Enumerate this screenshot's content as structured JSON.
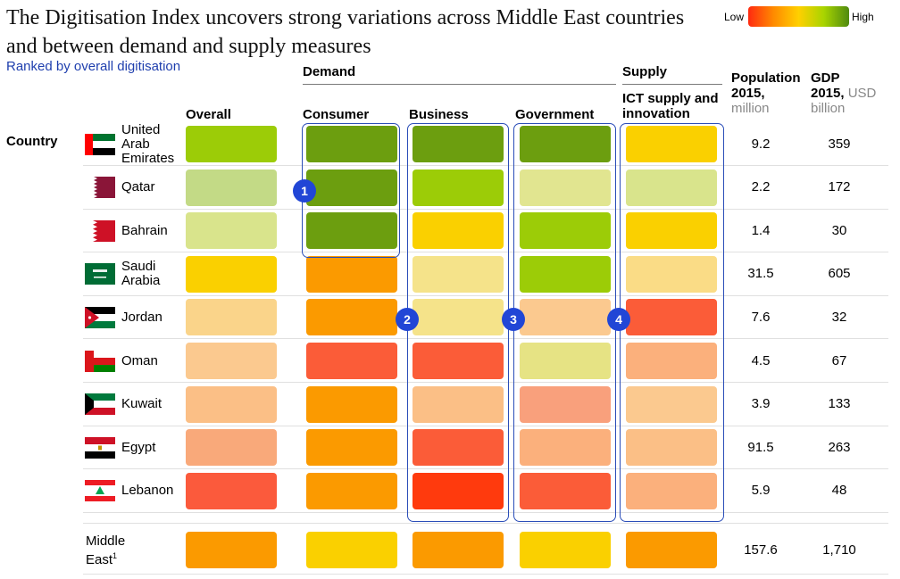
{
  "title": "The Digitisation Index uncovers strong variations across Middle East countries and between demand and supply measures",
  "subtitle": "Ranked by overall digitisation",
  "legend": {
    "low": "Low",
    "high": "High"
  },
  "groups": {
    "demand": "Demand",
    "supply": "Supply"
  },
  "columns": {
    "country": "Country",
    "overall": "Overall",
    "consumer": "Consumer",
    "business": "Business",
    "government": "Government",
    "ict": "ICT supply and innovation",
    "population": "Population",
    "population_year": "2015,",
    "population_unit": "million",
    "gdp": "GDP",
    "gdp_year": "2015,",
    "gdp_unit_a": "USD",
    "gdp_unit_b": "billion"
  },
  "colors": {
    "c1": "#5b9a10",
    "c2": "#6c9e0f",
    "c3": "#9ccc07",
    "c4": "#c3da86",
    "c5": "#d9e48c",
    "c6": "#e6e384",
    "c7": "#fad000",
    "c8": "#f5e38a",
    "c9": "#fad48a",
    "c10": "#fbc98f",
    "c11": "#fbbf86",
    "c12": "#fbb07c",
    "c13": "#f9a06e",
    "c14": "#fb9a00",
    "c15": "#fb8c13",
    "c16": "#fb5c38",
    "c17": "#ff3a0d",
    "c18": "#fb5a3c"
  },
  "chart_data": {
    "type": "heatmap",
    "title": "The Digitisation Index uncovers strong variations across Middle East countries and between demand and supply measures",
    "scale": [
      "Low",
      "High"
    ],
    "metrics": [
      "Overall",
      "Consumer",
      "Business",
      "Government",
      "ICT supply and innovation"
    ],
    "rows": [
      {
        "country": "United Arab Emirates",
        "name_lines": [
          "United",
          "Arab",
          "Emirates"
        ],
        "flag": "uae-flag",
        "colors": [
          "#9ccc07",
          "#6c9e0f",
          "#6c9e0f",
          "#6c9e0f",
          "#fad000"
        ],
        "population": "9.2",
        "gdp": "359"
      },
      {
        "country": "Qatar",
        "name_lines": [
          "Qatar"
        ],
        "flag": "qatar-flag",
        "colors": [
          "#c3da86",
          "#6c9e0f",
          "#9ccc07",
          "#e1e590",
          "#d9e48c"
        ],
        "population": "2.2",
        "gdp": "172"
      },
      {
        "country": "Bahrain",
        "name_lines": [
          "Bahrain"
        ],
        "flag": "bahrain-flag",
        "colors": [
          "#d9e48c",
          "#6c9e0f",
          "#fad000",
          "#9ccc07",
          "#fad000"
        ],
        "population": "1.4",
        "gdp": "30"
      },
      {
        "country": "Saudi Arabia",
        "name_lines": [
          "Saudi",
          "Arabia"
        ],
        "flag": "saudi-flag",
        "colors": [
          "#fad000",
          "#fb9a00",
          "#f5e38a",
          "#9ccc07",
          "#fadc86"
        ],
        "population": "31.5",
        "gdp": "605"
      },
      {
        "country": "Jordan",
        "name_lines": [
          "Jordan"
        ],
        "flag": "jordan-flag",
        "colors": [
          "#fad48a",
          "#fb9a00",
          "#f5e38a",
          "#fbc98f",
          "#fb5c38"
        ],
        "population": "7.6",
        "gdp": "32"
      },
      {
        "country": "Oman",
        "name_lines": [
          "Oman"
        ],
        "flag": "oman-flag",
        "colors": [
          "#fbc98f",
          "#fb5c38",
          "#fb5c38",
          "#e6e384",
          "#fbb07c"
        ],
        "population": "4.5",
        "gdp": "67"
      },
      {
        "country": "Kuwait",
        "name_lines": [
          "Kuwait"
        ],
        "flag": "kuwait-flag",
        "colors": [
          "#fbbf86",
          "#fb9a00",
          "#fbbf86",
          "#f9a07c",
          "#fbc98f"
        ],
        "population": "3.9",
        "gdp": "133"
      },
      {
        "country": "Egypt",
        "name_lines": [
          "Egypt"
        ],
        "flag": "egypt-flag",
        "colors": [
          "#f9a97a",
          "#fb9a00",
          "#fb5c38",
          "#fbb07c",
          "#fbbf86"
        ],
        "population": "91.5",
        "gdp": "263"
      },
      {
        "country": "Lebanon",
        "name_lines": [
          "Lebanon"
        ],
        "flag": "lebanon-flag",
        "colors": [
          "#fb5a3c",
          "#fb9a00",
          "#ff3a0d",
          "#fb5c38",
          "#fbb07c"
        ],
        "population": "5.9",
        "gdp": "48"
      }
    ],
    "total": {
      "country": "Middle East",
      "label": "Middle",
      "label2": "East",
      "footnote": "1",
      "colors": [
        "#fb9a00",
        "#fad000",
        "#fb9a00",
        "#fad000",
        "#fb9a00"
      ],
      "population": "157.6",
      "gdp": "1,710"
    },
    "callouts": [
      "1",
      "2",
      "3",
      "4"
    ]
  }
}
